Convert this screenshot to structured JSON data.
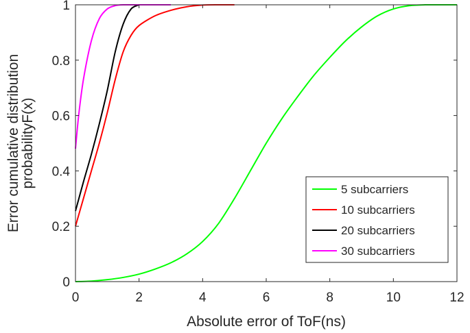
{
  "chart_data": {
    "type": "line",
    "title": "",
    "xlabel": "Absolute error of ToF(ns)",
    "ylabel_lines": [
      "Error cumulative distribution",
      "probabilityF(x)"
    ],
    "xlim": [
      0,
      12
    ],
    "ylim": [
      0,
      1
    ],
    "xticks": [
      0,
      2,
      4,
      6,
      8,
      10,
      12
    ],
    "yticks": [
      0,
      0.2,
      0.4,
      0.6,
      0.8,
      1
    ],
    "xtick_labels": [
      "0",
      "2",
      "4",
      "6",
      "8",
      "10",
      "12"
    ],
    "ytick_labels": [
      "0",
      "0.2",
      "0.4",
      "0.6",
      "0.8",
      "1"
    ],
    "grid": false,
    "legend_position": "bottom-right",
    "series": [
      {
        "name": "5 subcarriers",
        "color": "#00ff00",
        "x": [
          0,
          0.5,
          1.0,
          1.5,
          2.0,
          2.5,
          3.0,
          3.5,
          4.0,
          4.5,
          5.0,
          5.5,
          6.0,
          6.5,
          7.0,
          7.5,
          8.0,
          8.5,
          9.0,
          9.5,
          10.0,
          10.5,
          11.0,
          11.5,
          12.0
        ],
        "y": [
          0.0,
          0.002,
          0.007,
          0.015,
          0.027,
          0.045,
          0.068,
          0.1,
          0.145,
          0.21,
          0.3,
          0.4,
          0.5,
          0.59,
          0.67,
          0.745,
          0.81,
          0.87,
          0.92,
          0.96,
          0.985,
          0.997,
          1.0,
          1.0,
          1.0
        ]
      },
      {
        "name": "10 subcarriers",
        "color": "#ff0000",
        "x": [
          0,
          0.25,
          0.5,
          0.75,
          1.0,
          1.25,
          1.5,
          1.75,
          2.0,
          2.5,
          3.0,
          3.5,
          4.0,
          4.5,
          5.0
        ],
        "y": [
          0.2,
          0.3,
          0.4,
          0.5,
          0.61,
          0.73,
          0.83,
          0.89,
          0.925,
          0.96,
          0.98,
          0.993,
          0.999,
          1.0,
          1.0
        ]
      },
      {
        "name": "20 subcarriers",
        "color": "#000000",
        "x": [
          0,
          0.25,
          0.5,
          0.75,
          1.0,
          1.25,
          1.5,
          1.75,
          2.0
        ],
        "y": [
          0.255,
          0.36,
          0.46,
          0.57,
          0.69,
          0.83,
          0.93,
          0.985,
          1.0
        ]
      },
      {
        "name": "30 subcarriers",
        "color": "#ff00ff",
        "x": [
          0,
          0.1,
          0.25,
          0.5,
          0.75,
          1.0,
          1.25,
          1.5,
          2.0,
          2.5,
          3.0
        ],
        "y": [
          0.48,
          0.6,
          0.73,
          0.87,
          0.95,
          0.985,
          0.997,
          1.0,
          1.0,
          1.0,
          1.0
        ]
      }
    ]
  }
}
